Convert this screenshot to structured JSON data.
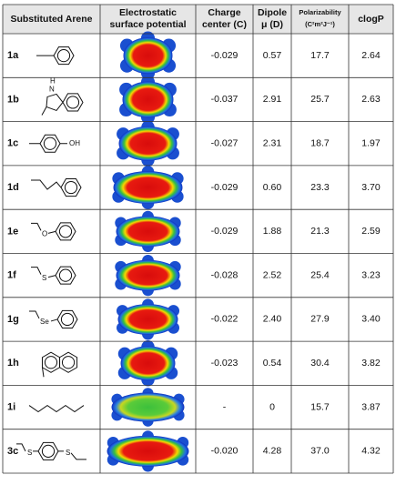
{
  "table": {
    "header": [
      [
        "Substituted Arene"
      ],
      [
        "Electrostatic",
        "surface potential"
      ],
      [
        "Charge",
        "center (C)"
      ],
      [
        "Dipole",
        "μ (D)"
      ],
      [
        "Polarizability",
        "(C²m²J⁻¹)"
      ],
      [
        "clogP"
      ]
    ],
    "rows": [
      {
        "id": "1a",
        "charge": "-0.029",
        "dipole": "0.57",
        "polarizability": "17.7",
        "clogP": "2.64"
      },
      {
        "id": "1b",
        "atoms": [
          "H",
          "N"
        ],
        "charge": "-0.037",
        "dipole": "2.91",
        "polarizability": "25.7",
        "clogP": "2.63"
      },
      {
        "id": "1c",
        "atoms": [
          "OH"
        ],
        "charge": "-0.027",
        "dipole": "2.31",
        "polarizability": "18.7",
        "clogP": "1.97"
      },
      {
        "id": "1d",
        "charge": "-0.029",
        "dipole": "0.60",
        "polarizability": "23.3",
        "clogP": "3.70"
      },
      {
        "id": "1e",
        "atoms": [
          "O"
        ],
        "charge": "-0.029",
        "dipole": "1.88",
        "polarizability": "21.3",
        "clogP": "2.59"
      },
      {
        "id": "1f",
        "atoms": [
          "S"
        ],
        "charge": "-0.028",
        "dipole": "2.52",
        "polarizability": "25.4",
        "clogP": "3.23"
      },
      {
        "id": "1g",
        "atoms": [
          "Se"
        ],
        "charge": "-0.022",
        "dipole": "2.40",
        "polarizability": "27.9",
        "clogP": "3.40"
      },
      {
        "id": "1h",
        "charge": "-0.023",
        "dipole": "0.54",
        "polarizability": "30.4",
        "clogP": "3.82"
      },
      {
        "id": "1i",
        "charge": "-",
        "dipole": "0",
        "polarizability": "15.7",
        "clogP": "3.87"
      },
      {
        "id": "3c",
        "atoms": [
          "S",
          "S"
        ],
        "charge": "-0.020",
        "dipole": "4.28",
        "polarizability": "37.0",
        "clogP": "4.32"
      }
    ]
  }
}
